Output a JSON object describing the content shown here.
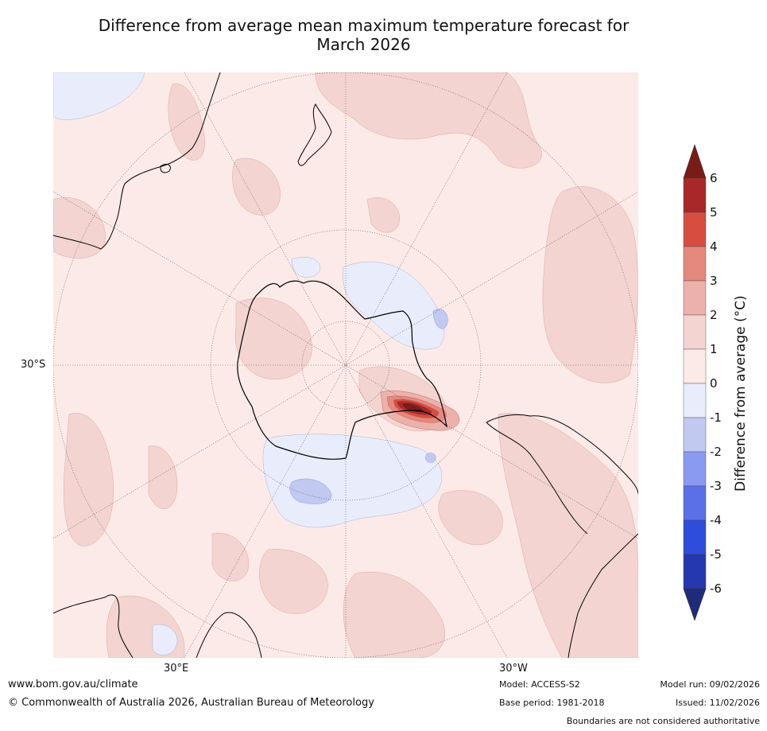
{
  "title_line1": "Difference from average mean maximum temperature forecast for",
  "title_line2": "March 2026",
  "map": {
    "projection": "south-polar-stereographic",
    "latitude_label": "30°S",
    "longitude_labels": {
      "east": "30°E",
      "west": "30°W"
    },
    "colors": {
      "anom_0_1": "#fbeae7",
      "anom_1_2": "#f3d4d0",
      "anom_2_3": "#ecb1aa",
      "anom_3_4": "#e5887d",
      "anom_4_5": "#d74e41",
      "anom_5_6": "#a8282a",
      "anom_6_plus": "#7a1b17",
      "anom_neg_0_1": "#e9edfb",
      "anom_neg_1_2": "#c1c9f1",
      "anom_neg_2_3": "#8a9af0",
      "coast": "#000000",
      "graticule": "#555555"
    }
  },
  "colorbar": {
    "label": "Difference from average (°C)",
    "ticks": [
      "6",
      "5",
      "4",
      "3",
      "2",
      "1",
      "0",
      "-1",
      "-2",
      "-3",
      "-4",
      "-5",
      "-6"
    ],
    "colors": [
      "#a8282a",
      "#d74e41",
      "#e5887d",
      "#ecb1aa",
      "#f3d4d0",
      "#fbeae7",
      "#e9edfb",
      "#c1c9f1",
      "#8a9af0",
      "#5b70e6",
      "#2f4ddd",
      "#2638b0"
    ],
    "over_color": "#7a1b17",
    "under_color": "#1f2a7c"
  },
  "footer": {
    "website": "www.bom.gov.au/climate",
    "copyright": "© Commonwealth of Australia 2026, Australian Bureau of Meteorology",
    "model": "Model: ACCESS-S2",
    "base_period": "Base period: 1981-2018",
    "model_run": "Model run: 09/02/2026",
    "issued": "Issued: 11/02/2026",
    "disclaimer": "Boundaries are not considered authoritative"
  }
}
